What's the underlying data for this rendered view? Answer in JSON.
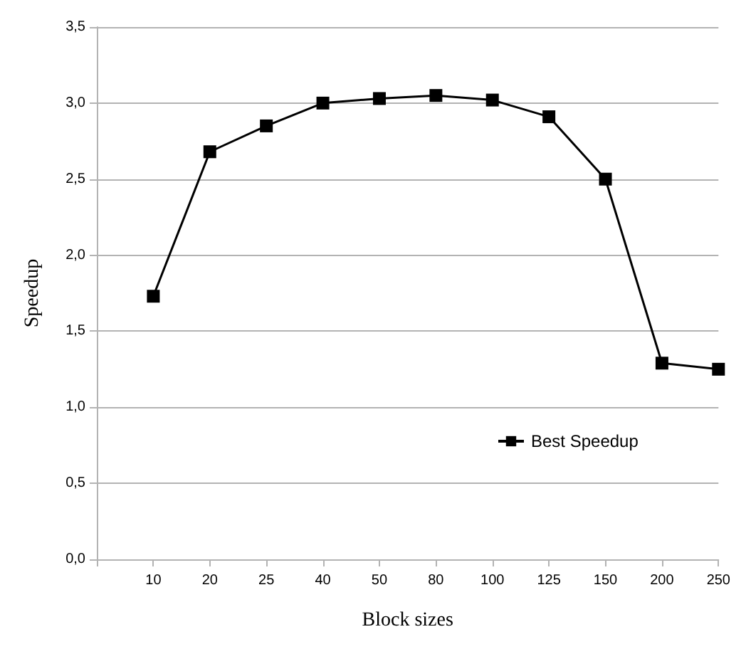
{
  "chart_data": {
    "type": "line",
    "xlabel": "Block sizes",
    "ylabel": "Speedup",
    "categories": [
      null,
      "10",
      "20",
      "25",
      "40",
      "50",
      "80",
      "100",
      "125",
      "150",
      "200",
      "250"
    ],
    "series": [
      {
        "name": "Best Speedup",
        "color": "#000000",
        "values": [
          null,
          1.73,
          2.68,
          2.85,
          3.0,
          3.03,
          3.05,
          3.02,
          2.91,
          2.5,
          1.29,
          1.25
        ]
      }
    ],
    "ylim": [
      0,
      3.5
    ],
    "yticks": [
      {
        "value": 0,
        "label": "0,0"
      },
      {
        "value": 0.5,
        "label": "0,5"
      },
      {
        "value": 1,
        "label": "1,0"
      },
      {
        "value": 1.5,
        "label": "1,5"
      },
      {
        "value": 2,
        "label": "2,0"
      },
      {
        "value": 2.5,
        "label": "2,5"
      },
      {
        "value": 3,
        "label": "3,0"
      },
      {
        "value": 3.5,
        "label": "3,5"
      }
    ],
    "grid": "y",
    "legend": "bottom right",
    "marker": "square",
    "line_style": "solid"
  }
}
